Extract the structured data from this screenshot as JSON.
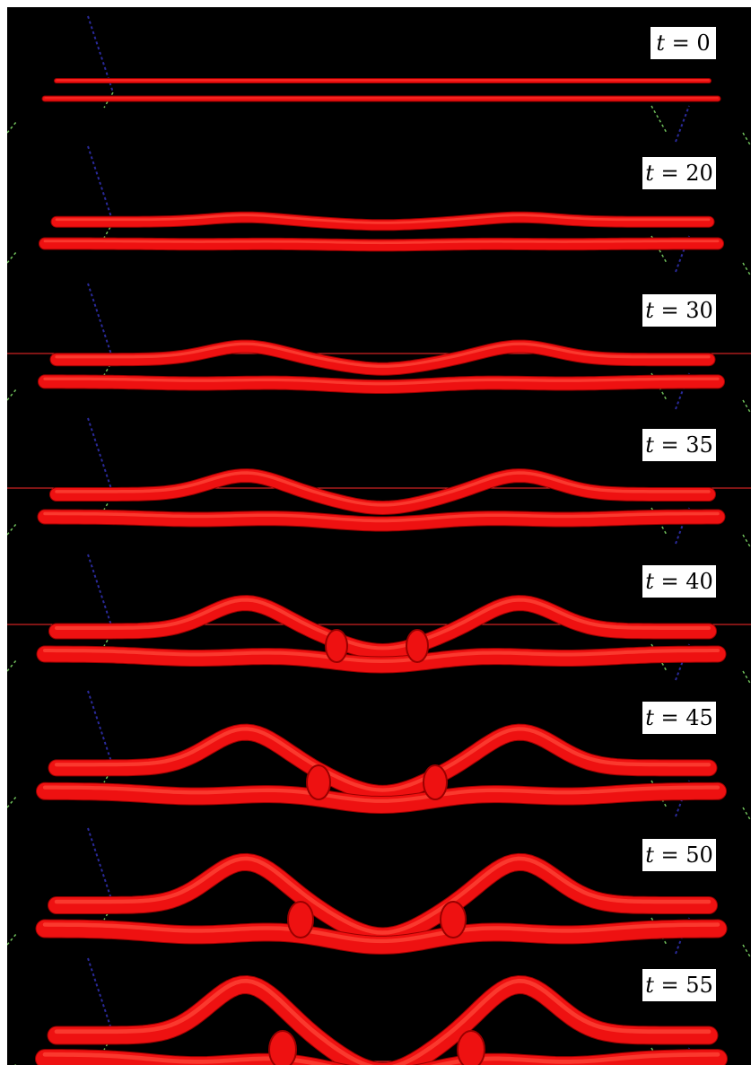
{
  "figure": {
    "background": "#000000",
    "tube_color": "#ee1111",
    "tube_highlight": "#ff4a3a",
    "tube_shadow": "#9a0000",
    "frame_line_color": "#ff2a2a",
    "axis_blue": "#2a2a9a",
    "axis_green": "#6fbf5a",
    "panels": [
      {
        "var": "t",
        "value": "0"
      },
      {
        "var": "t",
        "value": "20"
      },
      {
        "var": "t",
        "value": "30"
      },
      {
        "var": "t",
        "value": "35"
      },
      {
        "var": "t",
        "value": "40"
      },
      {
        "var": "t",
        "value": "45"
      },
      {
        "var": "t",
        "value": "50"
      },
      {
        "var": "t",
        "value": "55"
      }
    ]
  }
}
